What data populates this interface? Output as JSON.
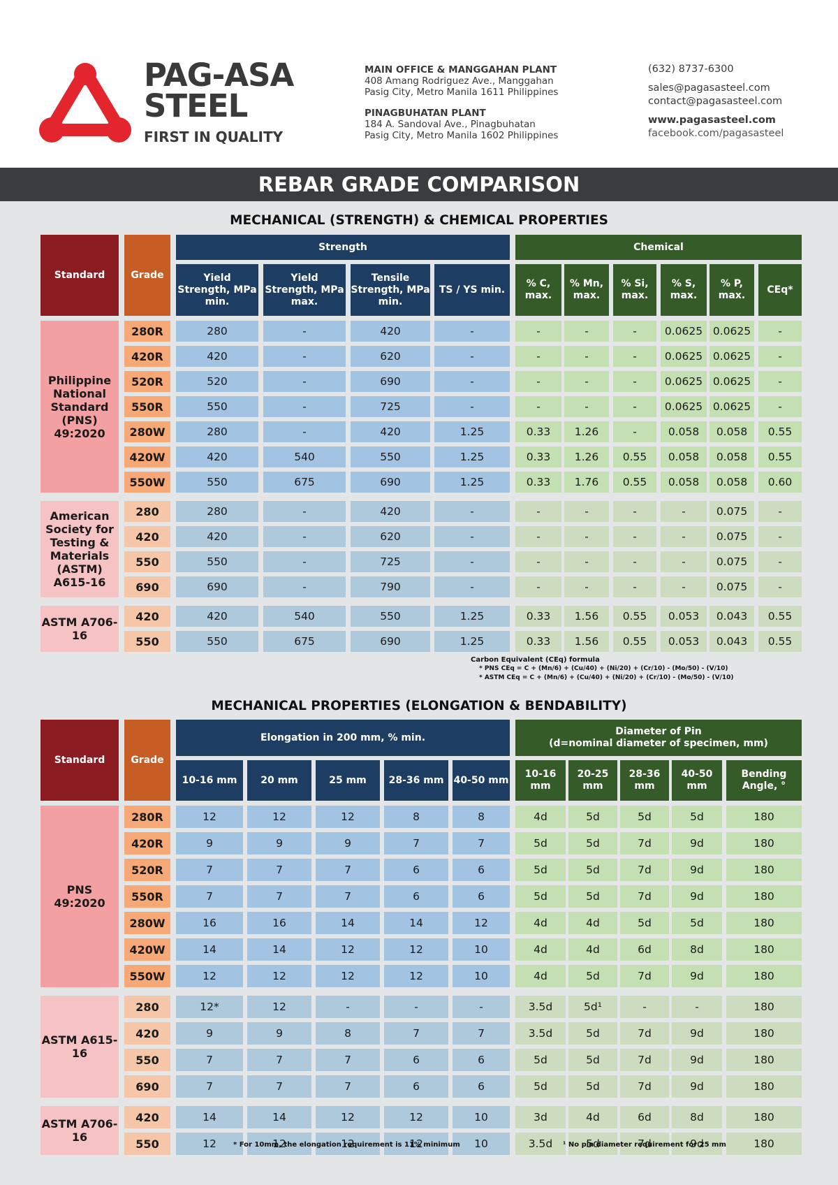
{
  "brand": {
    "name_line1": "PAG-ASA",
    "name_line2": "STEEL",
    "tagline": "FIRST IN QUALITY",
    "logo_icon": "triangle-logo-icon",
    "logo_color": "#e3252d"
  },
  "offices": [
    {
      "name": "MAIN OFFICE & MANGGAHAN PLANT",
      "line1": "408 Amang Rodriguez Ave., Manggahan",
      "line2": "Pasig City, Metro Manila 1611 Philippines"
    },
    {
      "name": "PINAGBUHATAN PLANT",
      "line1": "184 A. Sandoval Ave., Pinagbuhatan",
      "line2": "Pasig City, Metro Manila 1602 Philippines"
    }
  ],
  "contact": {
    "phone": "(632) 8737-6300",
    "email_sales": "sales@pagasasteel.com",
    "email_contact": "contact@pagasasteel.com",
    "website": "www.pagasasteel.com",
    "facebook": "facebook.com/pagasasteel"
  },
  "banner_title": "REBAR GRADE COMPARISON",
  "table1": {
    "title": "MECHANICAL (STRENGTH) & CHEMICAL PROPERTIES",
    "col_standard": "Standard",
    "col_grade": "Grade",
    "group_strength": "Strength",
    "group_chemical": "Chemical",
    "strength_cols": [
      "Yield Strength, MPa min.",
      "Yield Strength, MPa max.",
      "Tensile Strength, MPa min.",
      "TS / YS min."
    ],
    "chemical_cols": [
      "% C, max.",
      "% Mn, max.",
      "% Si, max.",
      "% S, max.",
      "% P, max.",
      "CEq*"
    ],
    "groups": [
      {
        "standard": "Philippine National Standard (PNS) 49:2020",
        "rows": [
          {
            "grade": "280R",
            "values": [
              "280",
              "-",
              "420",
              "-",
              "-",
              "-",
              "-",
              "0.0625",
              "0.0625",
              "-"
            ]
          },
          {
            "grade": "420R",
            "values": [
              "420",
              "-",
              "620",
              "-",
              "-",
              "-",
              "-",
              "0.0625",
              "0.0625",
              "-"
            ]
          },
          {
            "grade": "520R",
            "values": [
              "520",
              "-",
              "690",
              "-",
              "-",
              "-",
              "-",
              "0.0625",
              "0.0625",
              "-"
            ]
          },
          {
            "grade": "550R",
            "values": [
              "550",
              "-",
              "725",
              "-",
              "-",
              "-",
              "-",
              "0.0625",
              "0.0625",
              "-"
            ]
          },
          {
            "grade": "280W",
            "values": [
              "280",
              "-",
              "420",
              "1.25",
              "0.33",
              "1.26",
              "-",
              "0.058",
              "0.058",
              "0.55"
            ]
          },
          {
            "grade": "420W",
            "values": [
              "420",
              "540",
              "550",
              "1.25",
              "0.33",
              "1.26",
              "0.55",
              "0.058",
              "0.058",
              "0.55"
            ]
          },
          {
            "grade": "550W",
            "values": [
              "550",
              "675",
              "690",
              "1.25",
              "0.33",
              "1.76",
              "0.55",
              "0.058",
              "0.058",
              "0.60"
            ]
          }
        ]
      },
      {
        "standard": "American Society for Testing & Materials (ASTM) A615-16",
        "rows": [
          {
            "grade": "280",
            "values": [
              "280",
              "-",
              "420",
              "-",
              "-",
              "-",
              "-",
              "-",
              "0.075",
              "-"
            ]
          },
          {
            "grade": "420",
            "values": [
              "420",
              "-",
              "620",
              "-",
              "-",
              "-",
              "-",
              "-",
              "0.075",
              "-"
            ]
          },
          {
            "grade": "550",
            "values": [
              "550",
              "-",
              "725",
              "-",
              "-",
              "-",
              "-",
              "-",
              "0.075",
              "-"
            ]
          },
          {
            "grade": "690",
            "values": [
              "690",
              "-",
              "790",
              "-",
              "-",
              "-",
              "-",
              "-",
              "0.075",
              "-"
            ]
          }
        ]
      },
      {
        "standard": "ASTM A706-16",
        "rows": [
          {
            "grade": "420",
            "values": [
              "420",
              "540",
              "550",
              "1.25",
              "0.33",
              "1.56",
              "0.55",
              "0.053",
              "0.043",
              "0.55"
            ]
          },
          {
            "grade": "550",
            "values": [
              "550",
              "675",
              "690",
              "1.25",
              "0.33",
              "1.56",
              "0.55",
              "0.053",
              "0.043",
              "0.55"
            ]
          }
        ]
      }
    ],
    "notes": [
      "Carbon Equivalent (CEq) formula",
      "* PNS CEq = C + (Mn/6) + (Cu/40) + (Ni/20) + (Cr/10) - (Mo/50) - (V/10)",
      "* ASTM CEq = C + (Mn/6) + (Cu/40) + (Ni/20) + (Cr/10) - (Mo/50) - (V/10)"
    ]
  },
  "table2": {
    "title": "MECHANICAL PROPERTIES (ELONGATION & BENDABILITY)",
    "col_standard": "Standard",
    "col_grade": "Grade",
    "group_elongation": "Elongation in 200 mm,  % min.",
    "group_pin_line1": "Diameter of Pin",
    "group_pin_line2": "(d=nominal diameter of specimen, mm)",
    "elongation_cols": [
      "10-16 mm",
      "20 mm",
      "25 mm",
      "28-36 mm",
      "40-50 mm"
    ],
    "pin_cols": [
      "10-16 mm",
      "20-25 mm",
      "28-36 mm",
      "40-50 mm",
      "Bending Angle, °"
    ],
    "groups": [
      {
        "standard": "PNS 49:2020",
        "rows": [
          {
            "grade": "280R",
            "values": [
              "12",
              "12",
              "12",
              "8",
              "8",
              "4d",
              "5d",
              "5d",
              "5d",
              "180"
            ]
          },
          {
            "grade": "420R",
            "values": [
              "9",
              "9",
              "9",
              "7",
              "7",
              "5d",
              "5d",
              "7d",
              "9d",
              "180"
            ]
          },
          {
            "grade": "520R",
            "values": [
              "7",
              "7",
              "7",
              "6",
              "6",
              "5d",
              "5d",
              "7d",
              "9d",
              "180"
            ]
          },
          {
            "grade": "550R",
            "values": [
              "7",
              "7",
              "7",
              "6",
              "6",
              "5d",
              "5d",
              "7d",
              "9d",
              "180"
            ]
          },
          {
            "grade": "280W",
            "values": [
              "16",
              "16",
              "14",
              "14",
              "12",
              "4d",
              "4d",
              "5d",
              "5d",
              "180"
            ]
          },
          {
            "grade": "420W",
            "values": [
              "14",
              "14",
              "12",
              "12",
              "10",
              "4d",
              "4d",
              "6d",
              "8d",
              "180"
            ]
          },
          {
            "grade": "550W",
            "values": [
              "12",
              "12",
              "12",
              "12",
              "10",
              "4d",
              "5d",
              "7d",
              "9d",
              "180"
            ]
          }
        ]
      },
      {
        "standard": "ASTM A615-16",
        "rows": [
          {
            "grade": "280",
            "values": [
              "12*",
              "12",
              "-",
              "-",
              "-",
              "3.5d",
              "5d¹",
              "-",
              "-",
              "180"
            ]
          },
          {
            "grade": "420",
            "values": [
              "9",
              "9",
              "8",
              "7",
              "7",
              "3.5d",
              "5d",
              "7d",
              "9d",
              "180"
            ]
          },
          {
            "grade": "550",
            "values": [
              "7",
              "7",
              "7",
              "6",
              "6",
              "5d",
              "5d",
              "7d",
              "9d",
              "180"
            ]
          },
          {
            "grade": "690",
            "values": [
              "7",
              "7",
              "7",
              "6",
              "6",
              "5d",
              "5d",
              "7d",
              "9d",
              "180"
            ]
          }
        ]
      },
      {
        "standard": "ASTM A706-16",
        "rows": [
          {
            "grade": "420",
            "values": [
              "14",
              "14",
              "12",
              "12",
              "10",
              "3d",
              "4d",
              "6d",
              "8d",
              "180"
            ]
          },
          {
            "grade": "550",
            "values": [
              "12",
              "12",
              "12",
              "12",
              "10",
              "3.5d",
              "5d",
              "7d",
              "9d",
              "180"
            ]
          }
        ]
      }
    ],
    "footnote_left": "* For 10mm, the elongation requirement is 11% minimum",
    "footnote_right": "¹ No pin diameter requirement for 25 mm"
  }
}
